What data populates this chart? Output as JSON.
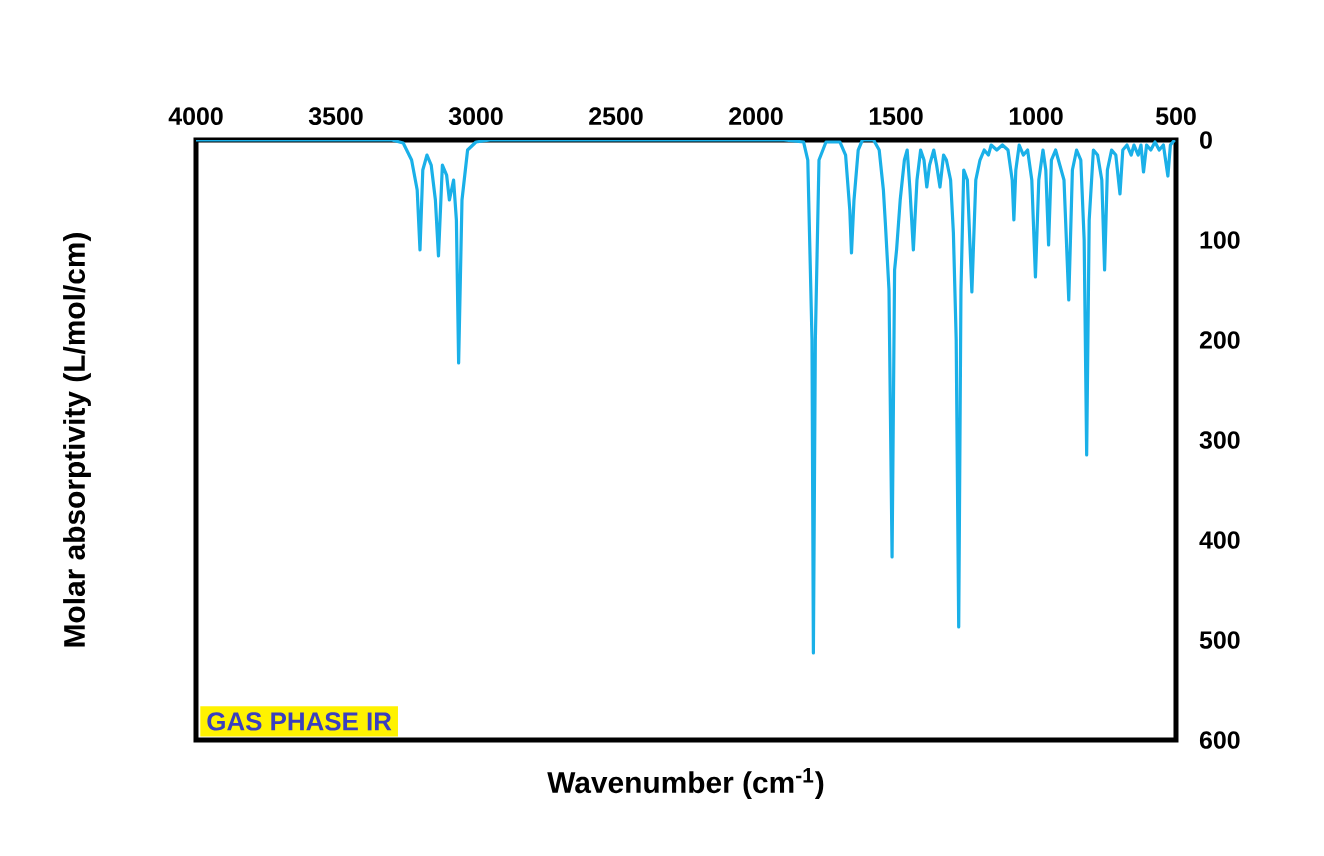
{
  "chart_data": {
    "type": "line",
    "xlabel": "Wavenumber (cm$^{-1}$)",
    "ylabel": "Molar absorptivity (L/mol/cm)",
    "annotations": [
      "GAS PHASE IR"
    ],
    "xlim": [
      4000,
      500
    ],
    "xticks": [
      4000,
      3500,
      3000,
      2500,
      2000,
      1500,
      1000,
      500
    ],
    "ylim": [
      600,
      0
    ],
    "yticks": [
      0,
      100,
      200,
      300,
      400,
      500,
      600
    ],
    "grid": false,
    "marker": "none",
    "line_style": "solid",
    "series": [
      {
        "color": "#1ab0e8",
        "x": [
          4000,
          3300,
          3260,
          3230,
          3210,
          3200,
          3190,
          3175,
          3160,
          3145,
          3134,
          3120,
          3105,
          3095,
          3080,
          3070,
          3062,
          3050,
          3030,
          3000,
          2950,
          1900,
          1830,
          1815,
          1800,
          1795,
          1788,
          1775,
          1750,
          1700,
          1680,
          1665,
          1659,
          1650,
          1635,
          1620,
          1580,
          1560,
          1545,
          1538,
          1525,
          1514,
          1505,
          1498,
          1485,
          1470,
          1460,
          1450,
          1438,
          1425,
          1412,
          1400,
          1390,
          1380,
          1365,
          1355,
          1343,
          1330,
          1320,
          1305,
          1295,
          1285,
          1276,
          1268,
          1258,
          1245,
          1229,
          1215,
          1200,
          1185,
          1170,
          1160,
          1140,
          1120,
          1100,
          1085,
          1079,
          1072,
          1060,
          1045,
          1030,
          1015,
          1002,
          990,
          975,
          965,
          955,
          945,
          930,
          915,
          900,
          883,
          870,
          855,
          840,
          828,
          819,
          810,
          795,
          780,
          765,
          755,
          745,
          730,
          715,
          700,
          690,
          675,
          660,
          650,
          635,
          625,
          616,
          605,
          590,
          575,
          560,
          545,
          529,
          520,
          505
        ],
        "values": [
          0,
          0,
          3,
          20,
          50,
          110,
          30,
          15,
          25,
          60,
          116,
          25,
          35,
          60,
          40,
          80,
          223,
          60,
          10,
          2,
          0,
          0,
          2,
          20,
          200,
          513,
          200,
          20,
          2,
          2,
          15,
          70,
          113,
          60,
          10,
          0,
          0,
          10,
          50,
          83,
          150,
          417,
          130,
          110,
          60,
          20,
          10,
          50,
          110,
          40,
          10,
          20,
          47,
          25,
          10,
          25,
          47,
          15,
          20,
          40,
          93,
          200,
          487,
          150,
          30,
          40,
          152,
          40,
          20,
          10,
          15,
          5,
          10,
          5,
          10,
          40,
          80,
          30,
          5,
          15,
          10,
          40,
          137,
          40,
          10,
          30,
          105,
          20,
          10,
          25,
          40,
          160,
          30,
          10,
          20,
          100,
          315,
          80,
          10,
          15,
          40,
          130,
          30,
          10,
          15,
          54,
          10,
          5,
          15,
          5,
          15,
          5,
          32,
          5,
          10,
          2,
          10,
          5,
          36,
          5,
          0
        ]
      }
    ]
  }
}
